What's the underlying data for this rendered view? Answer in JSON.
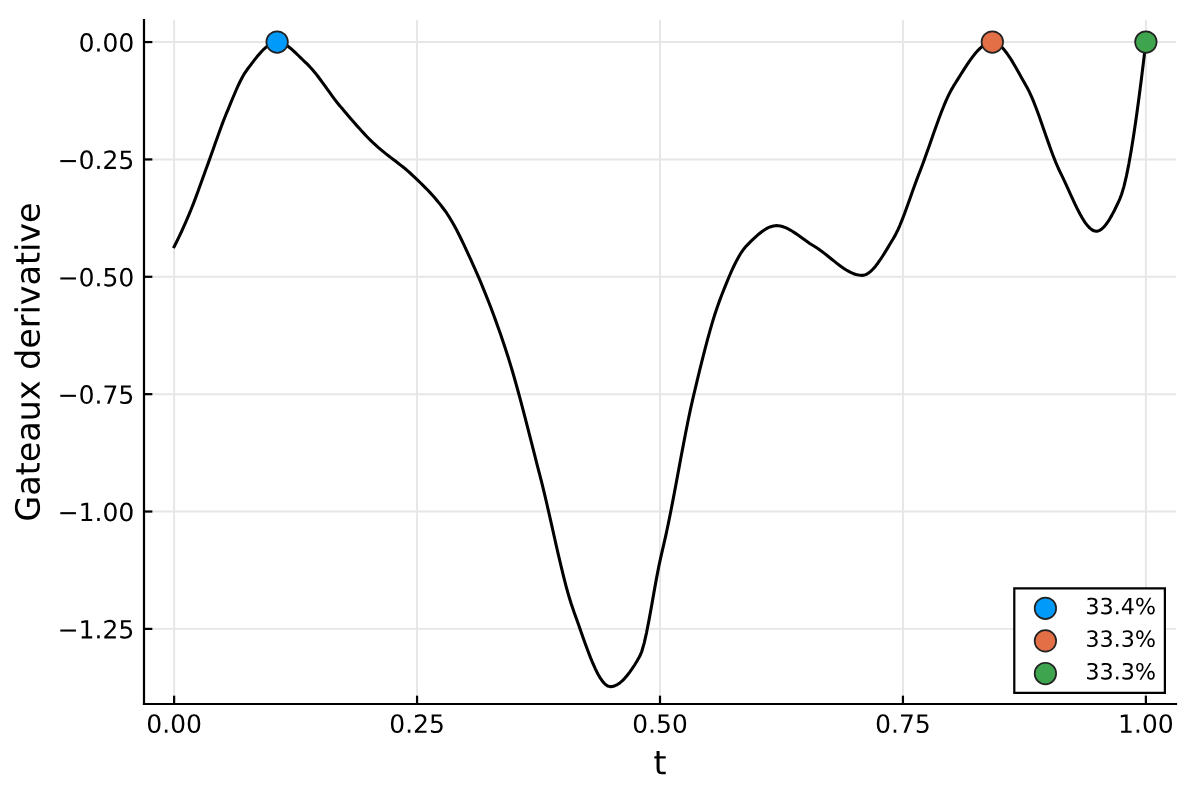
{
  "chart_data": {
    "type": "line",
    "xlabel": "t",
    "ylabel": "Gateaux derivative",
    "xlim": [
      -0.031,
      1.031
    ],
    "ylim": [
      -1.41,
      0.047
    ],
    "xticks": [
      {
        "value": 0,
        "label": "0.00"
      },
      {
        "value": 0.25,
        "label": "0.25"
      },
      {
        "value": 0.5,
        "label": "0.50"
      },
      {
        "value": 0.75,
        "label": "0.75"
      },
      {
        "value": 1,
        "label": "1.00"
      }
    ],
    "yticks": [
      {
        "value": 0,
        "label": "0.00"
      },
      {
        "value": -0.25,
        "label": "−0.25"
      },
      {
        "value": -0.5,
        "label": "−0.50"
      },
      {
        "value": -0.75,
        "label": "−0.75"
      },
      {
        "value": -1,
        "label": "−1.00"
      },
      {
        "value": -1.25,
        "label": "−1.25"
      }
    ],
    "grid": true,
    "legend": "bottom right",
    "series": [
      {
        "color": "#000000",
        "x": [
          0,
          0.016,
          0.034,
          0.054,
          0.075,
          0.106,
          0.136,
          0.171,
          0.205,
          0.246,
          0.28,
          0.308,
          0.342,
          0.377,
          0.411,
          0.449,
          0.479,
          0.5,
          0.507,
          0.534,
          0.562,
          0.589,
          0.62,
          0.658,
          0.708,
          0.74,
          0.767,
          0.802,
          0.842,
          0.877,
          0.912,
          0.949,
          0.973,
          1.0
        ],
        "values": [
          -0.436,
          -0.364,
          -0.264,
          -0.151,
          -0.059,
          0,
          -0.045,
          -0.137,
          -0.215,
          -0.285,
          -0.363,
          -0.476,
          -0.66,
          -0.928,
          -1.211,
          -1.373,
          -1.309,
          -1.105,
          -1.041,
          -0.758,
          -0.547,
          -0.434,
          -0.391,
          -0.434,
          -0.497,
          -0.419,
          -0.278,
          -0.094,
          0,
          -0.094,
          -0.278,
          -0.403,
          -0.335,
          0
        ]
      },
      {
        "type": "scatter",
        "name": "33.4%",
        "color": "#009afa",
        "x": [
          0.106
        ],
        "values": [
          0
        ]
      },
      {
        "type": "scatter",
        "name": "33.3%",
        "color": "#e26f46",
        "x": [
          0.842
        ],
        "values": [
          0
        ]
      },
      {
        "type": "scatter",
        "name": "33.3%",
        "color": "#3ea44e",
        "x": [
          1.0
        ],
        "values": [
          0
        ]
      }
    ]
  }
}
